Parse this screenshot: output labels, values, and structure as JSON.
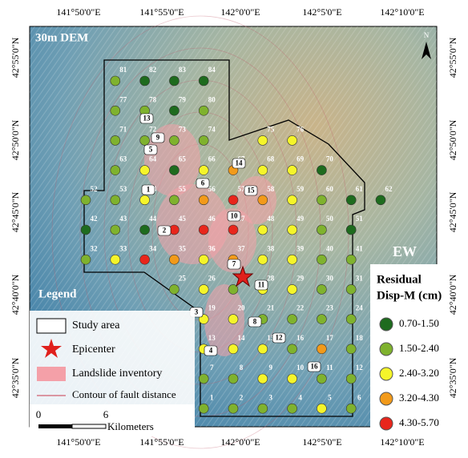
{
  "map": {
    "label": "30m DEM",
    "component": "EW",
    "north": "N",
    "top_axis": [
      "141°50'0\"E",
      "141°55'0\"E",
      "142°0'0\"E",
      "142°5'0\"E",
      "142°10'0\"E"
    ],
    "bottom_axis": [
      "141°50'0\"E",
      "141°55'0\"E",
      "142°0'0\"E",
      "142°5'0\"E",
      "142°10'0\"E"
    ],
    "left_axis": [
      "42°55'0\"N",
      "42°50'0\"N",
      "42°45'0\"N",
      "42°40'0\"N",
      "42°35'0\"N"
    ],
    "right_axis": [
      "42°55'0\"N",
      "42°50'0\"N",
      "42°45'0\"N",
      "42°40'0\"N",
      "42°35'0\"N"
    ]
  },
  "legend": {
    "title": "Legend",
    "items": [
      "Study area",
      "Epicenter",
      "Landslide inventory",
      "Contour of fault distance"
    ],
    "scale_ticks": [
      "0",
      "6"
    ],
    "scale_unit": "Kilometers"
  },
  "residual_legend": {
    "title": "Residual",
    "subtitle": "Disp-M (cm)",
    "classes": [
      {
        "label": "0.70-1.50",
        "color": "#1e6b1e"
      },
      {
        "label": "1.50-2.40",
        "color": "#7fb22e"
      },
      {
        "label": "2.40-3.20",
        "color": "#f5f52a"
      },
      {
        "label": "3.20-4.30",
        "color": "#f29a1a"
      },
      {
        "label": "4.30-5.70",
        "color": "#e8261c"
      }
    ]
  },
  "stations": [
    {
      "label": "1",
      "class": 1
    },
    {
      "label": "2",
      "class": 1
    },
    {
      "label": "3",
      "class": 1
    },
    {
      "label": "4",
      "class": 1
    },
    {
      "label": "5",
      "class": 2
    },
    {
      "label": "6",
      "class": 1
    },
    {
      "label": "7",
      "class": 1
    },
    {
      "label": "8",
      "class": 1
    },
    {
      "label": "9",
      "class": 2
    },
    {
      "label": "10",
      "class": 2
    },
    {
      "label": "11",
      "class": 1
    },
    {
      "label": "12",
      "class": 1
    },
    {
      "label": "13",
      "class": 2
    },
    {
      "label": "14",
      "class": 2
    },
    {
      "label": "15",
      "class": 2
    },
    {
      "label": "16",
      "class": 1
    },
    {
      "label": "17",
      "class": 3
    },
    {
      "label": "18",
      "class": 1
    },
    {
      "label": "19",
      "class": 2
    },
    {
      "label": "20",
      "class": 2
    },
    {
      "label": "21",
      "class": 1
    },
    {
      "label": "22",
      "class": 1
    },
    {
      "label": "23",
      "class": 1
    },
    {
      "label": "24",
      "class": 1
    },
    {
      "label": "25",
      "class": 1
    },
    {
      "label": "26",
      "class": 2
    },
    {
      "label": "27",
      "class": 1
    },
    {
      "label": "28",
      "class": 2
    },
    {
      "label": "29",
      "class": 2
    },
    {
      "label": "30",
      "class": 1
    },
    {
      "label": "31",
      "class": 1
    },
    {
      "label": "32",
      "class": 1
    },
    {
      "label": "33",
      "class": 2
    },
    {
      "label": "34",
      "class": 4
    },
    {
      "label": "35",
      "class": 3
    },
    {
      "label": "36",
      "class": 2
    },
    {
      "label": "37",
      "class": 3
    },
    {
      "label": "38",
      "class": 2
    },
    {
      "label": "39",
      "class": 2
    },
    {
      "label": "40",
      "class": 1
    },
    {
      "label": "41",
      "class": 1
    },
    {
      "label": "42",
      "class": 0
    },
    {
      "label": "43",
      "class": 1
    },
    {
      "label": "44",
      "class": 0
    },
    {
      "label": "45",
      "class": 4
    },
    {
      "label": "46",
      "class": 4
    },
    {
      "label": "47",
      "class": 4
    },
    {
      "label": "48",
      "class": 2
    },
    {
      "label": "49",
      "class": 2
    },
    {
      "label": "50",
      "class": 1
    },
    {
      "label": "51",
      "class": 0
    },
    {
      "label": "52",
      "class": 1
    },
    {
      "label": "53",
      "class": 1
    },
    {
      "label": "54",
      "class": 2
    },
    {
      "label": "55",
      "class": 1
    },
    {
      "label": "56",
      "class": 3
    },
    {
      "label": "57",
      "class": 4
    },
    {
      "label": "58",
      "class": 3
    },
    {
      "label": "59",
      "class": 2
    },
    {
      "label": "60",
      "class": 1
    },
    {
      "label": "61",
      "class": 0
    },
    {
      "label": "62",
      "class": 0
    },
    {
      "label": "63",
      "class": 1
    },
    {
      "label": "64",
      "class": 2
    },
    {
      "label": "65",
      "class": 0
    },
    {
      "label": "66",
      "class": 2
    },
    {
      "label": "67",
      "class": 3
    },
    {
      "label": "68",
      "class": 2
    },
    {
      "label": "69",
      "class": 2
    },
    {
      "label": "70",
      "class": 0
    },
    {
      "label": "71",
      "class": 1
    },
    {
      "label": "72",
      "class": 1
    },
    {
      "label": "73",
      "class": 1
    },
    {
      "label": "74",
      "class": 1
    },
    {
      "label": "75",
      "class": 2
    },
    {
      "label": "76",
      "class": 2
    },
    {
      "label": "77",
      "class": 1
    },
    {
      "label": "78",
      "class": 1
    },
    {
      "label": "79",
      "class": 0
    },
    {
      "label": "80",
      "class": 1
    },
    {
      "label": "81",
      "class": 1
    },
    {
      "label": "82",
      "class": 0
    },
    {
      "label": "83",
      "class": 0
    },
    {
      "label": "84",
      "class": 0
    }
  ],
  "landslides": [
    "1",
    "2",
    "3",
    "4",
    "5",
    "6",
    "7",
    "8",
    "9",
    "10",
    "11",
    "12",
    "13",
    "14",
    "15",
    "16"
  ]
}
